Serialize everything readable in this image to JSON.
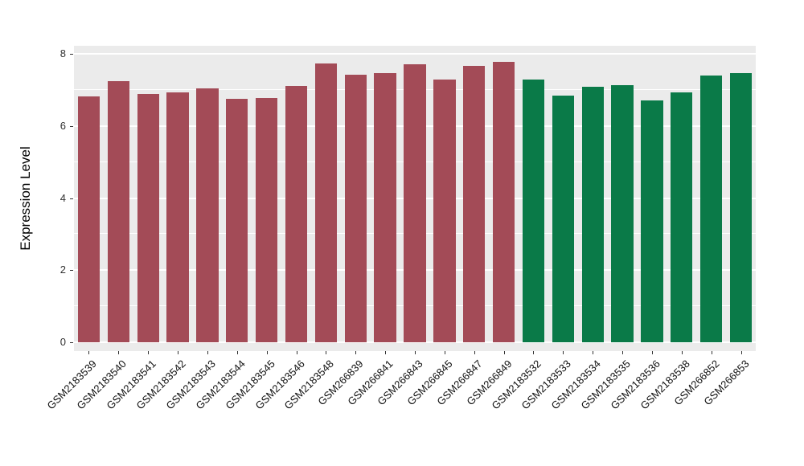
{
  "chart_data": {
    "type": "bar",
    "title": "",
    "ylabel": "Expression Level",
    "xlabel": "",
    "ylim": [
      0,
      8
    ],
    "yticks": [
      0,
      2,
      4,
      6,
      8
    ],
    "minor_ticks": [
      1,
      3,
      5,
      7
    ],
    "grid": true,
    "legend_position": "none",
    "panel_bg": "#EBEBEB",
    "grid_color": "#FFFFFF",
    "categories": [
      "GSM2183539",
      "GSM2183540",
      "GSM2183541",
      "GSM2183542",
      "GSM2183543",
      "GSM2183544",
      "GSM2183545",
      "GSM2183546",
      "GSM2183548",
      "GSM266839",
      "GSM266841",
      "GSM266843",
      "GSM266845",
      "GSM266847",
      "GSM266849",
      "GSM2183532",
      "GSM2183533",
      "GSM2183534",
      "GSM2183535",
      "GSM2183536",
      "GSM2183538",
      "GSM266852",
      "GSM266853"
    ],
    "values": [
      6.82,
      7.25,
      6.88,
      6.92,
      7.05,
      6.76,
      6.78,
      7.1,
      7.73,
      7.42,
      7.46,
      7.7,
      7.29,
      7.66,
      7.77,
      7.29,
      6.85,
      7.09,
      7.13,
      6.71,
      6.94,
      7.4,
      7.46
    ],
    "bar_colors": [
      "#A34B57",
      "#A34B57",
      "#A34B57",
      "#A34B57",
      "#A34B57",
      "#A34B57",
      "#A34B57",
      "#A34B57",
      "#A34B57",
      "#A34B57",
      "#A34B57",
      "#A34B57",
      "#A34B57",
      "#A34B57",
      "#A34B57",
      "#0A7A48",
      "#0A7A48",
      "#0A7A48",
      "#0A7A48",
      "#0A7A48",
      "#0A7A48",
      "#0A7A48",
      "#0A7A48"
    ],
    "group_colors": {
      "group1": "#A34B57",
      "group2": "#0A7A48"
    }
  }
}
